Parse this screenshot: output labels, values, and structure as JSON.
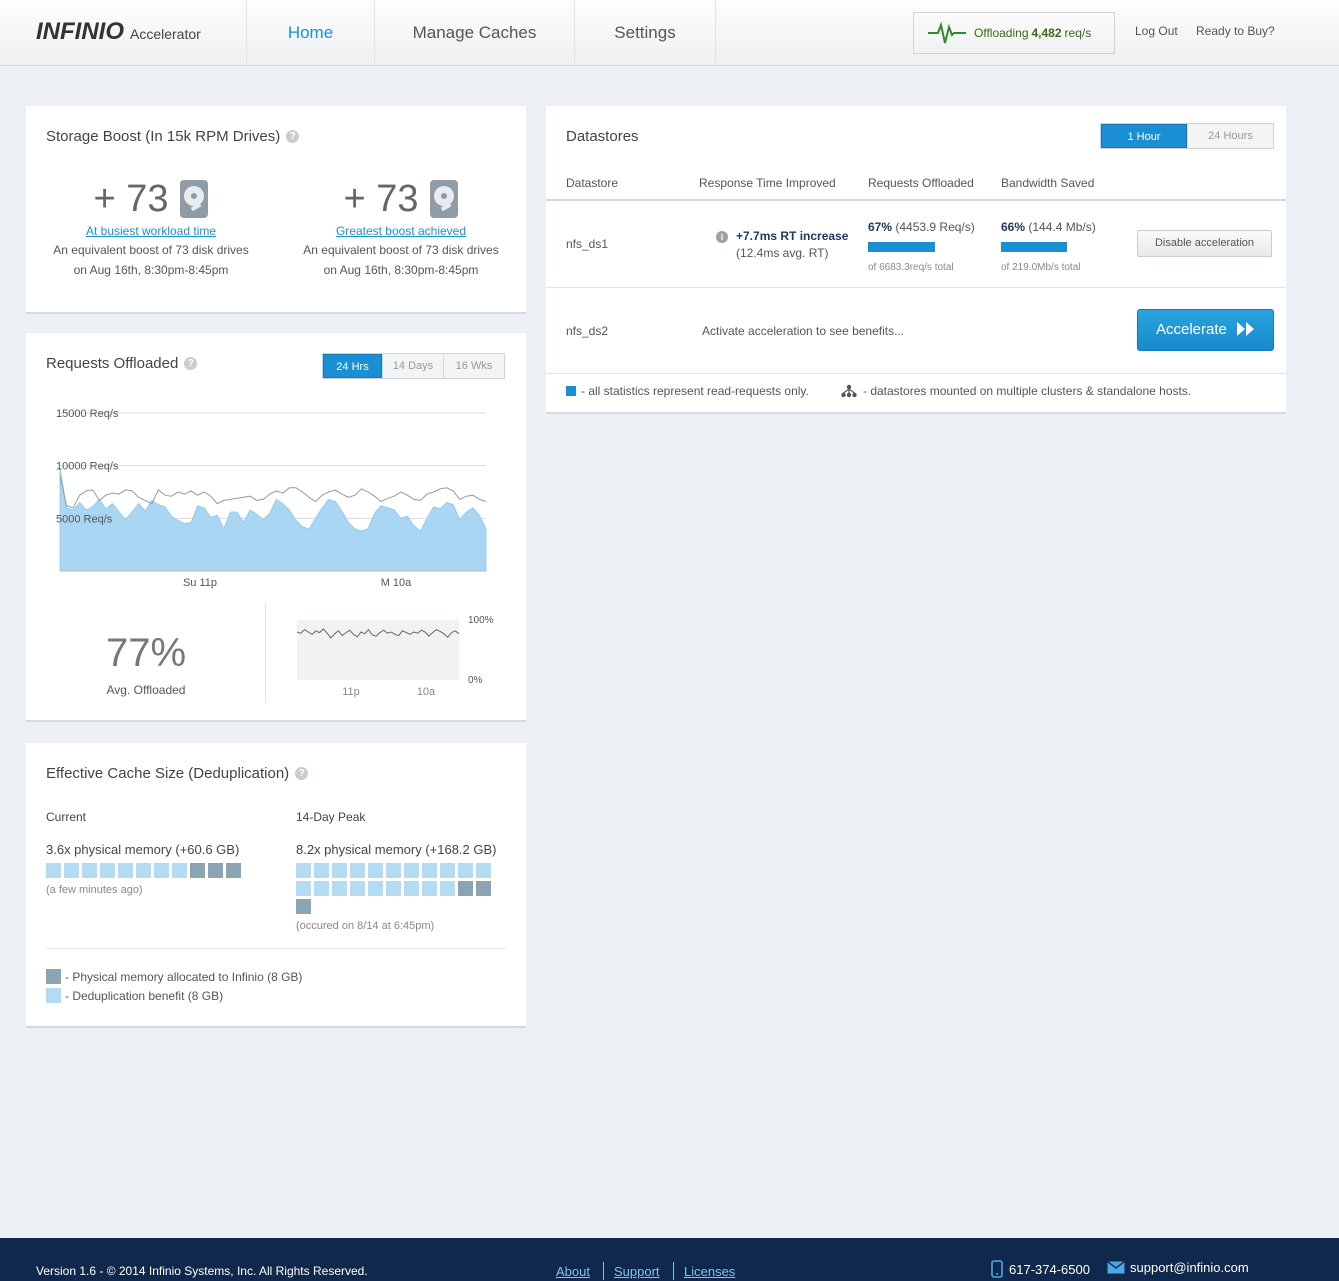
{
  "header": {
    "logo_main": "INFINIO",
    "logo_sub": "Accelerator",
    "nav": [
      "Home",
      "Manage Caches",
      "Settings"
    ],
    "offload_prefix": "Offloading",
    "offload_value": "4,482",
    "offload_unit": "req/s",
    "logout": "Log Out",
    "ready": "Ready to Buy?"
  },
  "storage_boost": {
    "title": "Storage Boost (In 15k RPM Drives)",
    "left": {
      "value": "+ 73",
      "link": "At busiest workload time",
      "desc1": "An equivalent boost of 73 disk drives",
      "desc2": "on Aug 16th, 8:30pm-8:45pm"
    },
    "right": {
      "value": "+ 73",
      "link": "Greatest boost achieved",
      "desc1": "An equivalent boost of 73 disk drives",
      "desc2": "on Aug 16th, 8:30pm-8:45pm"
    }
  },
  "requests_offloaded": {
    "title": "Requests Offloaded",
    "ranges": [
      "24 Hrs",
      "14 Days",
      "16 Wks"
    ],
    "active_range": "24 Hrs",
    "avg_pct": "77%",
    "avg_label": "Avg. Offloaded",
    "mini_top": "100%",
    "mini_bottom": "0%",
    "mini_ticks": [
      "11p",
      "10a"
    ]
  },
  "chart_data": [
    {
      "type": "area",
      "title": "",
      "y_tick_labels": [
        "15000 Req/s",
        "10000 Req/s",
        "5000 Req/s"
      ],
      "x_tick_labels": [
        "Su 11p",
        "M 10a"
      ],
      "ylim": [
        0,
        15000
      ],
      "grid": true,
      "series": [
        {
          "name": "",
          "kind": "area",
          "color": "#a9d6f3",
          "values": [
            9800,
            6000,
            5800,
            6500,
            5800,
            6100,
            6800,
            5900,
            6400,
            5600,
            4900,
            5600,
            6400,
            5700,
            6700,
            6300,
            6100,
            5200,
            4800,
            4500,
            4600,
            6200,
            6000,
            5100,
            5300,
            4000,
            5600,
            5600,
            4600,
            5800,
            5400,
            4900,
            5500,
            6800,
            6400,
            5800,
            4800,
            4200,
            4000,
            5000,
            6000,
            6800,
            6600,
            5700,
            4600,
            4000,
            3800,
            4000,
            5500,
            6200,
            6000,
            5800,
            5000,
            5200,
            4300,
            3800,
            5000,
            6100,
            5900,
            6500,
            6300,
            4900,
            5600,
            6000,
            5300,
            4000
          ]
        },
        {
          "name": "",
          "kind": "line",
          "color": "#999999",
          "values": [
            9000,
            6200,
            6000,
            7200,
            7600,
            7700,
            6700,
            7200,
            7400,
            7300,
            7700,
            7600,
            7000,
            6700,
            6400,
            7700,
            7200,
            7100,
            7500,
            7300,
            7600,
            7200,
            7500,
            7100,
            6400,
            6700,
            6800,
            6900,
            7000,
            7100,
            6700,
            6800,
            7300,
            7600,
            7400,
            7900,
            7900,
            7500,
            7000,
            6600,
            7200,
            7500,
            7700,
            7300,
            7000,
            7200,
            7800,
            7500,
            7100,
            6600,
            6900,
            7100,
            7500,
            7200,
            6800,
            6700,
            7300,
            7500,
            7800,
            7900,
            7600,
            6800,
            7100,
            7200,
            6800,
            6600
          ]
        }
      ]
    },
    {
      "type": "line",
      "title": "",
      "x_tick_labels": [
        "11p",
        "10a"
      ],
      "y_tick_labels": [
        "100%",
        "0%"
      ],
      "ylim": [
        0,
        100
      ],
      "series": [
        {
          "name": "",
          "values": [
            80,
            78,
            84,
            80,
            76,
            82,
            79,
            85,
            78,
            70,
            77,
            82,
            74,
            79,
            83,
            76,
            72,
            80,
            77,
            84,
            75,
            73,
            79,
            83,
            78,
            80,
            76,
            74,
            82,
            79,
            76,
            80,
            78,
            83,
            80,
            73,
            79,
            84,
            81,
            77,
            71,
            79,
            82,
            77
          ]
        }
      ]
    }
  ],
  "cache_size": {
    "title": "Effective Cache Size (Deduplication)",
    "current": {
      "label": "Current",
      "value": "3.6x physical memory (+60.6 GB)",
      "note": "(a few minutes ago)",
      "dedup_blocks": 8,
      "phys_blocks": 3
    },
    "peak": {
      "label": "14-Day Peak",
      "value": "8.2x physical memory (+168.2 GB)",
      "note": "(occured on 8/14 at 6:45pm)",
      "dedup_blocks": 20,
      "phys_blocks": 3
    },
    "legend_phys": "- Physical memory allocated to Infinio (8 GB)",
    "legend_dedup": "- Deduplication benefit (8 GB)",
    "colors": {
      "dedup": "#b3dcf2",
      "phys": "#8aa4b4"
    }
  },
  "datastores": {
    "title": "Datastores",
    "ranges": [
      "1 Hour",
      "24 Hours"
    ],
    "active_range": "1 Hour",
    "columns": [
      "Datastore",
      "Response Time Improved",
      "Requests Offloaded",
      "Bandwidth Saved"
    ],
    "rows": [
      {
        "name": "nfs_ds1",
        "rt_main": "+7.7ms RT increase",
        "rt_sub": "(12.4ms avg. RT)",
        "req_pct": "67%",
        "req_val": "(4453.9 Req/s)",
        "req_total": "of 6683.3req/s total",
        "req_fraction": 0.67,
        "bw_pct": "66%",
        "bw_val": "(144.4 Mb/s)",
        "bw_total": "of 219.0Mb/s total",
        "bw_fraction": 0.66,
        "action": "Disable acceleration"
      },
      {
        "name": "nfs_ds2",
        "message": "Activate acceleration to see benefits...",
        "action": "Accelerate"
      }
    ],
    "note_read": "- all statistics represent read-requests only.",
    "note_mounted": "- datastores mounted on multiple clusters & standalone hosts."
  },
  "footer": {
    "copyright": "Version 1.6 - © 2014 Infinio Systems, Inc. All Rights Reserved.",
    "links": [
      "About",
      "Support",
      "Licenses"
    ],
    "phone": "617-374-6500",
    "email": "support@infinio.com"
  },
  "colors": {
    "accent": "#1b8fd3",
    "footer_bg": "#10284b",
    "offload_green": "#3a6a1a"
  }
}
